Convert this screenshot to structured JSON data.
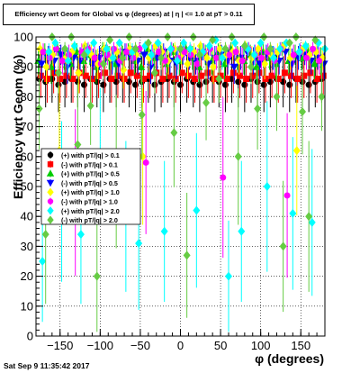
{
  "title": "Efficiency wrt Geom for Global vs φ (degrees) at | η | <= 1.0 at pT > 0.11",
  "timestamp": "Sat Sep  9 11:35:42 2017",
  "chart_data": {
    "type": "scatter",
    "xlabel": "φ (degrees)",
    "ylabel": "Efficiency wrt Geom (%)",
    "xlim": [
      -180,
      180
    ],
    "ylim": [
      0,
      100
    ],
    "x_ticks": [
      -150,
      -100,
      -50,
      0,
      50,
      100,
      150
    ],
    "y_ticks": [
      0,
      10,
      20,
      30,
      40,
      50,
      60,
      70,
      80,
      90,
      100
    ],
    "grid": true,
    "legend_position": "lower-left",
    "series": [
      {
        "name": "(+) with pT/|q| > 0.1",
        "color": "#000000",
        "marker": "circle",
        "phi_start": -176,
        "phi_step": 8,
        "values": [
          86,
          85,
          86,
          84,
          85,
          86,
          85,
          84,
          86,
          85,
          84,
          86,
          85,
          86,
          85,
          84,
          85,
          86,
          84,
          85,
          86,
          85,
          84,
          86,
          85,
          84,
          85,
          86,
          85,
          84,
          86,
          85,
          84,
          86,
          85,
          84,
          85,
          86,
          85,
          84,
          86,
          85,
          84,
          85,
          86
        ]
      },
      {
        "name": "(-) with pT/|q| > 0.1",
        "color": "#ff0000",
        "marker": "square",
        "phi_start": -174,
        "phi_step": 8,
        "values": [
          87,
          86,
          88,
          86,
          87,
          86,
          88,
          87,
          86,
          87,
          88,
          86,
          87,
          86,
          88,
          87,
          86,
          87,
          88,
          86,
          87,
          86,
          88,
          87,
          86,
          87,
          88,
          86,
          87,
          86,
          88,
          87,
          86,
          87,
          88,
          86,
          87,
          86,
          88,
          87,
          86,
          87,
          88,
          86,
          87
        ]
      },
      {
        "name": "(+) with pT/|q| > 0.5",
        "color": "#00cc00",
        "marker": "triangle",
        "phi_start": -177,
        "phi_step": 8,
        "values": [
          92,
          95,
          90,
          96,
          93,
          91,
          95,
          92,
          94,
          90,
          96,
          93,
          91,
          94,
          95,
          92,
          90,
          96,
          93,
          94,
          91,
          95,
          92,
          96,
          93,
          90,
          94,
          92,
          95,
          91,
          96,
          93,
          92,
          94,
          90,
          95,
          93,
          91,
          96,
          92,
          94,
          93,
          95,
          91,
          92
        ]
      },
      {
        "name": "(-) with pT/|q| > 0.5",
        "color": "#0000ff",
        "marker": "triangle-down",
        "phi_start": -173,
        "phi_step": 8,
        "values": [
          91,
          93,
          92,
          94,
          90,
          93,
          92,
          95,
          91,
          93,
          94,
          92,
          91,
          95,
          93,
          92,
          94,
          90,
          93,
          95,
          92,
          91,
          94,
          93,
          92,
          95,
          91,
          93,
          94,
          92,
          90,
          93,
          95,
          92,
          91,
          94,
          93,
          92,
          95,
          91,
          93,
          94,
          92,
          93,
          91
        ]
      },
      {
        "name": "(+) with pT/|q| > 1.0",
        "color": "#ffff00",
        "marker": "diamond",
        "phi_start": -175,
        "phi_step": 8,
        "values": [
          96,
          90,
          94,
          62,
          93,
          95,
          88,
          97,
          94,
          91,
          96,
          93,
          95,
          89,
          96,
          94,
          60,
          93,
          97,
          95,
          92,
          96,
          94,
          91,
          95,
          97,
          93,
          90,
          96,
          94,
          95,
          92,
          97,
          93,
          96,
          91,
          94,
          95,
          97,
          93,
          62,
          96,
          94,
          95,
          93
        ]
      },
      {
        "name": "(-) with pT/|q| > 1.0",
        "color": "#ff00ff",
        "marker": "circle",
        "phi_start": -171,
        "phi_step": 8,
        "values": [
          95,
          93,
          96,
          92,
          94,
          48,
          95,
          96,
          93,
          91,
          94,
          96,
          92,
          95,
          93,
          96,
          58,
          94,
          95,
          92,
          96,
          93,
          95,
          94,
          91,
          95,
          96,
          93,
          53,
          94,
          95,
          92,
          96,
          94,
          93,
          95,
          92,
          96,
          47,
          94,
          95,
          93,
          96,
          92,
          94
        ]
      },
      {
        "name": "(+) with pT/|q| > 2.0",
        "color": "#00ffff",
        "marker": "diamond",
        "phi_start": -172,
        "phi_step": 8,
        "values": [
          25,
          95,
          98,
          45,
          92,
          97,
          34,
          95,
          98,
          60,
          96,
          93,
          98,
          40,
          95,
          31,
          97,
          94,
          98,
          35,
          96,
          92,
          98,
          96,
          42,
          95,
          97,
          99,
          93,
          20,
          98,
          35,
          96,
          94,
          98,
          50,
          93,
          96,
          98,
          41,
          95,
          97,
          38,
          98,
          96
        ]
      },
      {
        "name": "(-) with pT/|q| > 2.0",
        "color": "#66cc44",
        "marker": "diamond",
        "phi_start": -176,
        "phi_step": 8,
        "values": [
          76,
          34,
          100,
          88,
          96,
          100,
          64,
          94,
          77,
          20,
          91,
          99,
          55,
          93,
          100,
          96,
          74,
          98,
          88,
          93,
          100,
          68,
          96,
          27,
          100,
          94,
          78,
          99,
          86,
          96,
          100,
          60,
          97,
          90,
          76,
          100,
          96,
          80,
          30,
          98,
          100,
          75,
          40,
          99,
          80
        ]
      }
    ]
  }
}
